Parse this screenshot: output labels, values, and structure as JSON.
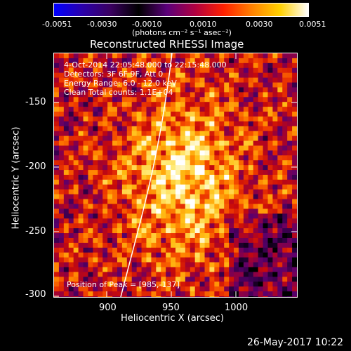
{
  "colorbar": {
    "tick_labels": [
      "-0.0051",
      "-0.0030",
      "-0.0010",
      "0.0010",
      "0.0030",
      "0.0051"
    ],
    "units": "(photons cm⁻² s⁻¹ asec⁻²)",
    "min": -0.0051,
    "max": 0.0051,
    "colors": [
      "#0000ff",
      "#2a00aa",
      "#3a0060",
      "#000000",
      "#5a007a",
      "#b00040",
      "#ff2000",
      "#ff8000",
      "#ffd000",
      "#ffffff"
    ]
  },
  "image": {
    "title": "Reconstructed RHESSI Image",
    "info_lines": [
      "4-Oct-2014 22:05:48.000 to 22:15:48.000",
      "Detectors: 3F 6F 9F, Att 0",
      "Energy Range: 6.0 - 12.0 keV",
      "Clean    Total counts: 1.1E+04"
    ],
    "peak_label": "Position of Peak = [985,-137]",
    "x_label": "Heliocentric X (arcsec)",
    "y_label": "Heliocentric Y (arcsec)",
    "x_ticks": [
      "900",
      "950",
      "1000"
    ],
    "y_ticks": [
      "-150",
      "-200",
      "-250",
      "-300"
    ],
    "x_range": [
      860,
      1046
    ],
    "y_range": [
      -303,
      -116
    ],
    "limb_color": "#ffffff"
  },
  "footer": {
    "timestamp": "26-May-2017 10:22"
  }
}
